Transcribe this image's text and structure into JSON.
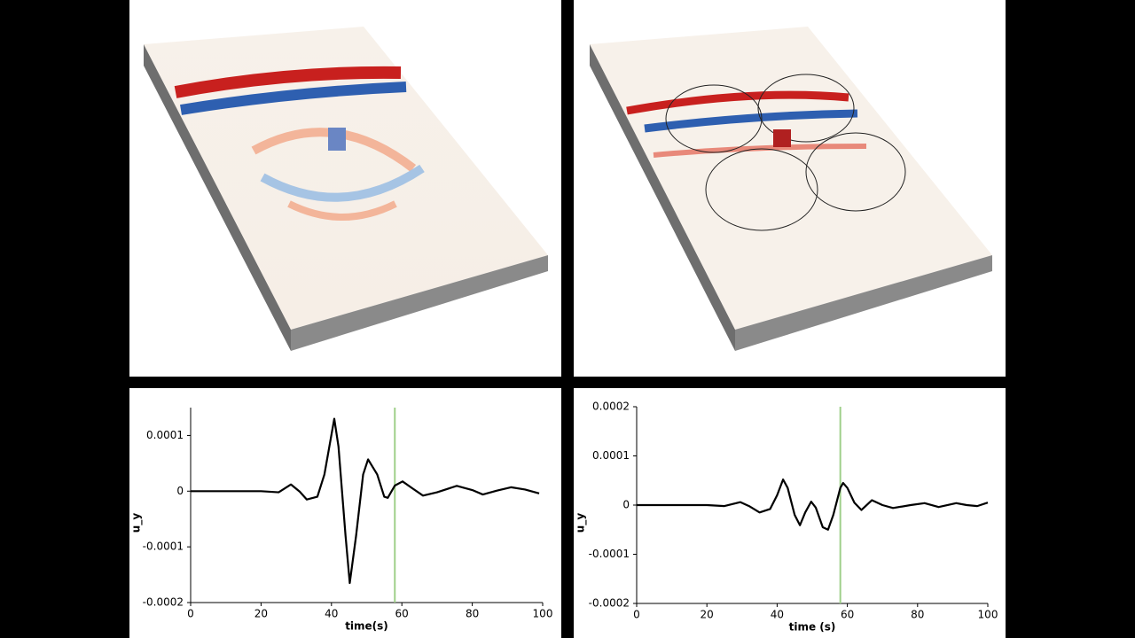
{
  "chart_data": [
    {
      "type": "line",
      "xlabel": "time(s)",
      "ylabel": "u_y",
      "x": [
        0,
        20,
        25,
        28.5,
        31,
        33,
        36,
        38,
        40.8,
        42,
        44,
        45.2,
        47,
        49,
        50.4,
        53,
        55,
        56,
        58,
        60.2,
        63,
        66,
        70,
        75.6,
        80,
        83,
        87,
        91,
        95,
        99
      ],
      "values": [
        0,
        0,
        -2e-06,
        1.2e-05,
        -1e-06,
        -1.5e-05,
        -1e-05,
        3e-05,
        0.00013,
        8e-05,
        -8e-05,
        -0.000165,
        -8e-05,
        3e-05,
        5.7e-05,
        3e-05,
        -1e-05,
        -1.2e-05,
        1e-05,
        1.75e-05,
        5e-06,
        -8e-06,
        -2e-06,
        9.5e-06,
        2e-06,
        -6e-06,
        1e-06,
        7e-06,
        3e-06,
        -4e-06
      ],
      "color": "#000000",
      "xlim": [
        0,
        100
      ],
      "ylim": [
        -0.0002,
        0.00015
      ],
      "xticks": [
        0,
        20,
        40,
        60,
        80,
        100
      ],
      "yticks": [
        -0.0002,
        -0.0001,
        0,
        0.0001
      ],
      "marker": {
        "x": 58,
        "color": "#9fd08a"
      }
    },
    {
      "type": "line",
      "xlabel": "time (s)",
      "ylabel": "u_y",
      "x": [
        0,
        20,
        25,
        29.5,
        32,
        35,
        38,
        40,
        41.7,
        43,
        45,
        46.5,
        48,
        49.7,
        51,
        53,
        54.5,
        56,
        58,
        58.8,
        60,
        62,
        64,
        67,
        70,
        73,
        78,
        82,
        86,
        91,
        94,
        97,
        100
      ],
      "values": [
        0,
        0,
        -2e-06,
        6e-06,
        -2e-06,
        -1.5e-05,
        -8e-06,
        2e-05,
        5.2e-05,
        3.5e-05,
        -2e-05,
        -4.1e-05,
        -1.5e-05,
        7e-06,
        -5e-06,
        -4.5e-05,
        -5e-05,
        -2e-05,
        3.5e-05,
        4.5e-05,
        3.5e-05,
        5e-06,
        -1e-05,
        1e-05,
        0,
        -6e-06,
        0,
        4e-06,
        -4e-06,
        4e-06,
        0,
        -2e-06,
        5e-06
      ],
      "color": "#000000",
      "xlim": [
        0,
        100
      ],
      "ylim": [
        -0.0002,
        0.0002
      ],
      "xticks": [
        0,
        20,
        40,
        60,
        80,
        100
      ],
      "yticks": [
        -0.0002,
        -0.0001,
        0,
        0.0001,
        0.0002
      ],
      "marker": {
        "x": 58,
        "color": "#9fd08a"
      }
    }
  ]
}
